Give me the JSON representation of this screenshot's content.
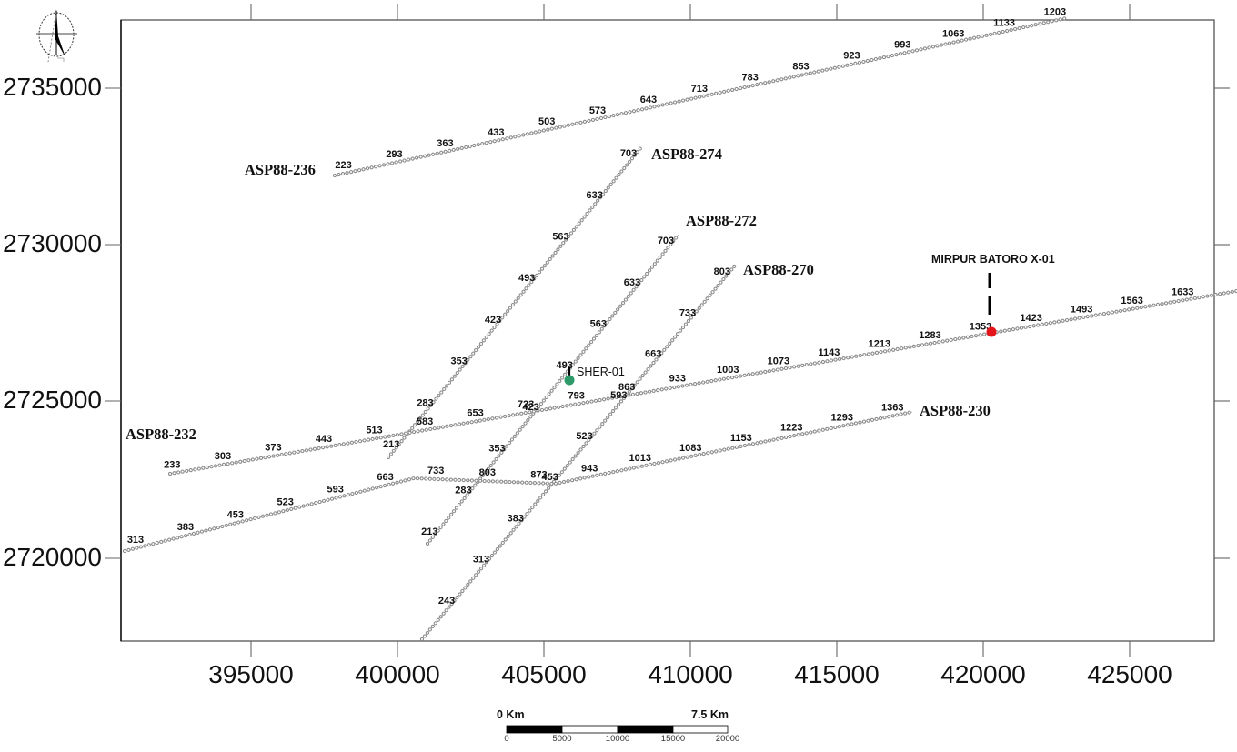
{
  "axes": {
    "x_ticks": [
      "395000",
      "400000",
      "405000",
      "410000",
      "415000",
      "420000",
      "425000"
    ],
    "y_ticks": [
      "2735000",
      "2730000",
      "2725000",
      "2720000"
    ]
  },
  "north_arrow": {
    "icon": "north-arrow-icon"
  },
  "scale_bar": {
    "left_label": "0 Km",
    "right_label": "7.5 Km",
    "ticks": [
      "0",
      "5000",
      "10000",
      "15000",
      "20000"
    ]
  },
  "colors": {
    "line_dots": "#8c8c8c",
    "frame": "#555555",
    "sher_well": "#2e9a6a",
    "mirpur_well": "#e3151b",
    "text": "#111111"
  },
  "seismic_lines": [
    {
      "name": "ASP88-236",
      "vertices": [
        [
          397857,
          2732209
        ],
        [
          422826,
          2737238
        ]
      ],
      "shotpoints": [
        "223",
        "293",
        "363",
        "433",
        "503",
        "573",
        "643",
        "713",
        "783",
        "853",
        "923",
        "993",
        "1063",
        "1133",
        "1203"
      ],
      "label_range": [
        0.012,
        0.985
      ],
      "name_anchor": [
        394783,
        2732384
      ]
    },
    {
      "name": "ASP88-274",
      "vertices": [
        [
          399690,
          2723197
        ],
        [
          408323,
          2733110
        ]
      ],
      "shotpoints": [
        "213",
        "283",
        "353",
        "423",
        "493",
        "563",
        "633",
        "703"
      ],
      "label_range": [
        0.044,
        0.982
      ],
      "name_anchor": [
        408665,
        2732878
      ]
    },
    {
      "name": "ASP88-272",
      "vertices": [
        [
          401025,
          2720436
        ],
        [
          409596,
          2730320
        ]
      ],
      "shotpoints": [
        "213",
        "283",
        "353",
        "423",
        "493",
        "563",
        "633",
        "703"
      ],
      "label_range": [
        0.041,
        0.982
      ],
      "name_anchor": [
        409845,
        2730756
      ]
    },
    {
      "name": "ASP88-270",
      "vertices": [
        [
          400839,
          2717384
        ],
        [
          411522,
          2729331
        ]
      ],
      "shotpoints": [
        "243",
        "313",
        "383",
        "453",
        "523",
        "593",
        "663",
        "733",
        "803"
      ],
      "label_range": [
        0.105,
        0.985
      ],
      "name_anchor": [
        411801,
        2729186
      ]
    },
    {
      "name": "ASP88-232",
      "vertices": [
        [
          392236,
          2722674
        ],
        [
          428665,
          2728517
        ]
      ],
      "shotpoints": [
        "233",
        "303",
        "373",
        "443",
        "513",
        "583",
        "653",
        "723",
        "793",
        "863",
        "933",
        "1003",
        "1073",
        "1143",
        "1213",
        "1283",
        "1353",
        "1423",
        "1493",
        "1563",
        "1633"
      ],
      "label_range": [
        0.002,
        0.949
      ],
      "name_anchor": [
        390714,
        2723924
      ]
    },
    {
      "name": "ASP88-230",
      "vertices": [
        [
          390683,
          2720204
        ],
        [
          400559,
          2722529
        ],
        [
          405373,
          2722355
        ],
        [
          417578,
          2724651
        ]
      ],
      "shotpoints": [
        "313",
        "383",
        "453",
        "523",
        "593",
        "663",
        "733",
        "803",
        "873",
        "943",
        "1013",
        "1083",
        "1153",
        "1223",
        "1293",
        "1363"
      ],
      "label_range": [
        0.014,
        0.975
      ],
      "name_anchor": [
        417826,
        2724680
      ]
    }
  ],
  "wells": [
    {
      "name": "SHER-01",
      "easting": 405870,
      "northing": 2725669,
      "color": "#2e9a6a",
      "style": "normal"
    },
    {
      "name": "MIRPUR BATORO X-01",
      "easting": 420280,
      "northing": 2727209,
      "color": "#e3151b",
      "style": "bold"
    }
  ]
}
